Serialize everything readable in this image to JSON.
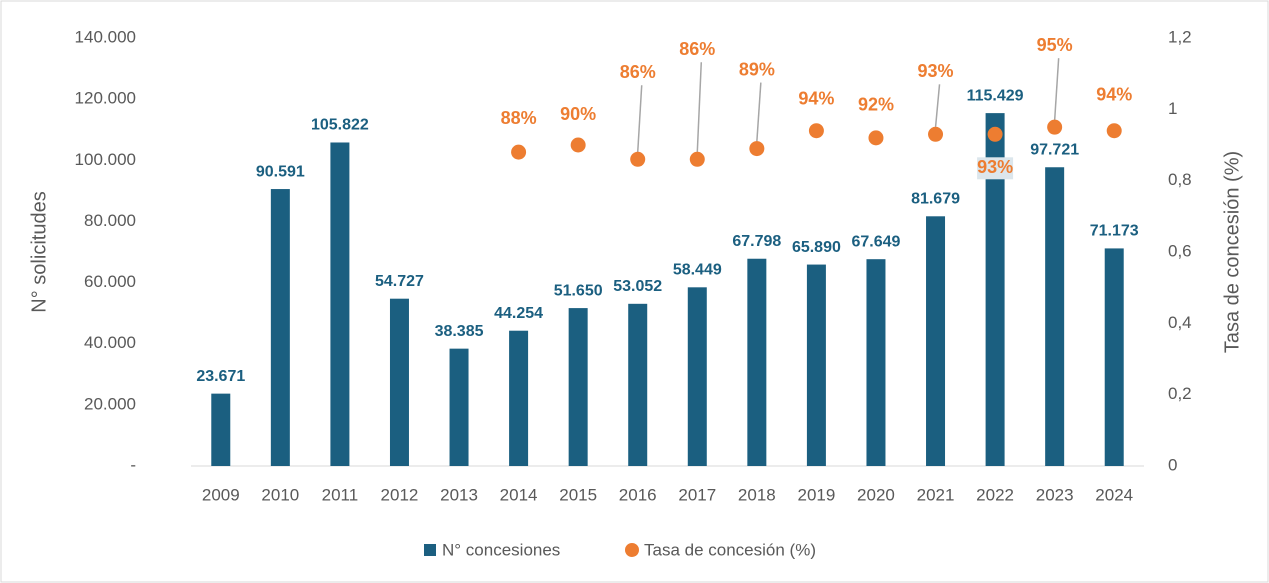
{
  "chart_data": {
    "type": "bar",
    "categories": [
      "2009",
      "2010",
      "2011",
      "2012",
      "2013",
      "2014",
      "2015",
      "2016",
      "2017",
      "2018",
      "2019",
      "2020",
      "2021",
      "2022",
      "2023",
      "2024"
    ],
    "series": [
      {
        "name": "N° concesiones",
        "type": "bar",
        "color": "#1b5f80",
        "values": [
          23671,
          90591,
          105822,
          54727,
          38385,
          44254,
          51650,
          53052,
          58449,
          67798,
          65890,
          67649,
          81679,
          115429,
          97721,
          71173
        ],
        "value_labels": [
          "23.671",
          "90.591",
          "105.822",
          "54.727",
          "38.385",
          "44.254",
          "51.650",
          "53.052",
          "58.449",
          "67.798",
          "65.890",
          "67.649",
          "81.679",
          "115.429",
          "97.721",
          "71.173"
        ]
      },
      {
        "name": "Tasa de concesión (%)",
        "type": "scatter",
        "axis": "y2",
        "color": "#ed7d31",
        "values": [
          null,
          null,
          null,
          null,
          null,
          0.88,
          0.9,
          0.86,
          0.86,
          0.89,
          0.94,
          0.92,
          0.93,
          0.93,
          0.95,
          0.94
        ],
        "value_labels": [
          null,
          null,
          null,
          null,
          null,
          "88%",
          "90%",
          "86%",
          "86%",
          "89%",
          "94%",
          "92%",
          "93%",
          "93%",
          "95%",
          "94%"
        ]
      }
    ],
    "ylabel": "N° solicitudes",
    "y2label": "Tasa de concesión (%)",
    "ylim": [
      0,
      140000
    ],
    "yticks": [
      {
        "value": 0,
        "label": "-"
      },
      {
        "value": 20000,
        "label": "20.000"
      },
      {
        "value": 40000,
        "label": "40.000"
      },
      {
        "value": 60000,
        "label": "60.000"
      },
      {
        "value": 80000,
        "label": "80.000"
      },
      {
        "value": 100000,
        "label": "100.000"
      },
      {
        "value": 120000,
        "label": "120.000"
      },
      {
        "value": 140000,
        "label": "140.000"
      }
    ],
    "y2lim": [
      0,
      1.2
    ],
    "y2ticks": [
      0,
      {
        "value": 0.2,
        "label": "0,2"
      },
      {
        "value": 0.4,
        "label": "0,4"
      },
      {
        "value": 0.6,
        "label": "0,6"
      },
      {
        "value": 0.8,
        "label": "0,8"
      },
      1,
      {
        "value": 1.2,
        "label": "1,2"
      }
    ],
    "legend": "bottom"
  }
}
